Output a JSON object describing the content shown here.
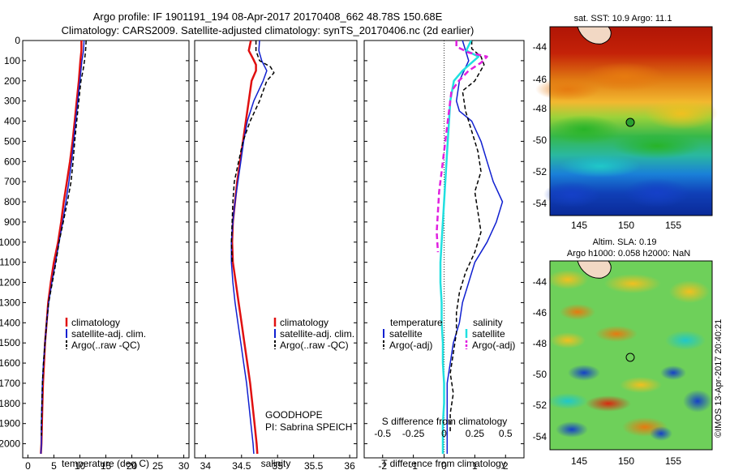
{
  "header": {
    "title_line1": "Argo profile: IF 1901191_194 08-Apr-2017 20170408_662 48.78S 150.68E",
    "title_line2": "Climatology: CARS2009. Satellite-adjusted climatology: synTS_20170406.nc (2d earlier)"
  },
  "colors": {
    "climatology": "#e01010",
    "satellite": "#1020d0",
    "argo": "#000000",
    "salinity_sat": "#20e0e0",
    "salinity_argo": "#e020e0"
  },
  "legend": {
    "climatology": "climatology",
    "satellite_adj": "satellite-adj. clim.",
    "argo": "Argo(..raw -QC)",
    "temperature_head": "temperature",
    "salinity_head": "salinity",
    "satellite": "satellite",
    "argo_adj": "Argo(-adj)"
  },
  "info": {
    "project": "GOODHOPE",
    "pi": "PI: Sabrina SPEICH"
  },
  "sst_map": {
    "title": "sat. SST: 10.9 Argo: 11.1"
  },
  "sla_map": {
    "title_line1": "Altim. SLA: 0.19",
    "title_line2": "Argo h1000: 0.058 h2000: NaN"
  },
  "stamp": "©IMOS 13-Apr-2017 20:40:21",
  "chart_data": [
    {
      "type": "line",
      "id": "temperature",
      "xlabel": "temperature (deg C)",
      "ylabel": "",
      "xlim": [
        -1,
        31
      ],
      "ylim": [
        2070,
        0
      ],
      "xticks": [
        "0",
        "5",
        "10",
        "15",
        "20",
        "25",
        "30"
      ],
      "xtick_values": [
        0,
        5,
        10,
        15,
        20,
        25,
        30
      ],
      "yticks": [
        0,
        100,
        200,
        300,
        400,
        500,
        600,
        700,
        800,
        900,
        1000,
        1100,
        1200,
        1300,
        1400,
        1500,
        1600,
        1700,
        1800,
        1900,
        2000
      ],
      "series": [
        {
          "name": "climatology",
          "color": "climatology",
          "width": 2.5,
          "dash": "",
          "points": [
            [
              10.3,
              0
            ],
            [
              10.3,
              50
            ],
            [
              10.1,
              100
            ],
            [
              9.8,
              200
            ],
            [
              9.4,
              300
            ],
            [
              9.0,
              400
            ],
            [
              8.6,
              500
            ],
            [
              8.1,
              600
            ],
            [
              7.5,
              700
            ],
            [
              6.9,
              800
            ],
            [
              6.4,
              900
            ],
            [
              5.8,
              1000
            ],
            [
              5.0,
              1100
            ],
            [
              4.4,
              1200
            ],
            [
              3.9,
              1300
            ],
            [
              3.6,
              1400
            ],
            [
              3.3,
              1500
            ],
            [
              3.1,
              1600
            ],
            [
              2.9,
              1700
            ],
            [
              2.8,
              1800
            ],
            [
              2.7,
              1900
            ],
            [
              2.6,
              2000
            ],
            [
              2.5,
              2050
            ]
          ]
        },
        {
          "name": "satellite-adj. clim.",
          "color": "satellite",
          "width": 1.5,
          "dash": "",
          "points": [
            [
              10.8,
              0
            ],
            [
              10.7,
              50
            ],
            [
              10.4,
              100
            ],
            [
              10.0,
              200
            ],
            [
              9.6,
              300
            ],
            [
              9.2,
              400
            ],
            [
              8.8,
              500
            ],
            [
              8.4,
              600
            ],
            [
              7.9,
              700
            ],
            [
              7.3,
              800
            ],
            [
              6.7,
              900
            ],
            [
              6.0,
              1000
            ],
            [
              5.3,
              1100
            ],
            [
              4.6,
              1200
            ],
            [
              4.0,
              1300
            ],
            [
              3.6,
              1400
            ],
            [
              3.3,
              1500
            ],
            [
              3.0,
              1600
            ],
            [
              2.8,
              1700
            ],
            [
              2.7,
              1800
            ],
            [
              2.6,
              1900
            ],
            [
              2.6,
              2000
            ],
            [
              2.5,
              2050
            ]
          ]
        },
        {
          "name": "Argo(..raw -QC)",
          "color": "argo",
          "width": 1.5,
          "dash": "5,3",
          "points": [
            [
              11.2,
              0
            ],
            [
              11.1,
              50
            ],
            [
              10.9,
              100
            ],
            [
              10.6,
              150
            ],
            [
              10.2,
              200
            ],
            [
              9.8,
              300
            ],
            [
              9.4,
              400
            ],
            [
              9.0,
              500
            ],
            [
              8.7,
              600
            ],
            [
              8.3,
              700
            ],
            [
              7.6,
              800
            ],
            [
              6.8,
              900
            ],
            [
              6.0,
              1000
            ],
            [
              5.4,
              1100
            ],
            [
              4.7,
              1200
            ],
            [
              4.0,
              1300
            ],
            [
              3.6,
              1400
            ],
            [
              3.3,
              1500
            ],
            [
              3.0,
              1600
            ],
            [
              2.8,
              1700
            ],
            [
              2.7,
              1800
            ],
            [
              2.6,
              1900
            ],
            [
              2.6,
              1960
            ]
          ]
        }
      ]
    },
    {
      "type": "line",
      "id": "salinity",
      "xlabel": "salinity",
      "ylabel": "",
      "xlim": [
        33.85,
        36.1
      ],
      "ylim": [
        2070,
        0
      ],
      "xticks": [
        "34",
        "34.5",
        "35",
        "35.5",
        "36"
      ],
      "xtick_values": [
        34,
        34.5,
        35,
        35.5,
        36
      ],
      "yticks": [
        0,
        100,
        200,
        300,
        400,
        500,
        600,
        700,
        800,
        900,
        1000,
        1100,
        1200,
        1300,
        1400,
        1500,
        1600,
        1700,
        1800,
        1900,
        2000
      ],
      "series": [
        {
          "name": "climatology",
          "color": "climatology",
          "width": 2.5,
          "dash": "",
          "points": [
            [
              34.63,
              0
            ],
            [
              34.6,
              50
            ],
            [
              34.66,
              90
            ],
            [
              34.7,
              120
            ],
            [
              34.7,
              150
            ],
            [
              34.64,
              200
            ],
            [
              34.6,
              300
            ],
            [
              34.56,
              400
            ],
            [
              34.52,
              500
            ],
            [
              34.48,
              600
            ],
            [
              34.44,
              700
            ],
            [
              34.41,
              800
            ],
            [
              34.38,
              900
            ],
            [
              34.37,
              1000
            ],
            [
              34.38,
              1100
            ],
            [
              34.42,
              1200
            ],
            [
              34.46,
              1300
            ],
            [
              34.5,
              1400
            ],
            [
              34.54,
              1500
            ],
            [
              34.58,
              1600
            ],
            [
              34.62,
              1700
            ],
            [
              34.65,
              1800
            ],
            [
              34.68,
              1900
            ],
            [
              34.71,
              2000
            ],
            [
              34.72,
              2050
            ]
          ]
        },
        {
          "name": "satellite-adj. clim.",
          "color": "satellite",
          "width": 1.5,
          "dash": "",
          "points": [
            [
              34.75,
              0
            ],
            [
              34.74,
              50
            ],
            [
              34.78,
              100
            ],
            [
              34.85,
              150
            ],
            [
              34.8,
              200
            ],
            [
              34.67,
              300
            ],
            [
              34.58,
              400
            ],
            [
              34.53,
              500
            ],
            [
              34.49,
              600
            ],
            [
              34.45,
              700
            ],
            [
              34.41,
              800
            ],
            [
              34.38,
              900
            ],
            [
              34.36,
              1000
            ],
            [
              34.36,
              1100
            ],
            [
              34.38,
              1200
            ],
            [
              34.41,
              1300
            ],
            [
              34.45,
              1400
            ],
            [
              34.49,
              1500
            ],
            [
              34.53,
              1600
            ],
            [
              34.57,
              1700
            ],
            [
              34.6,
              1800
            ],
            [
              34.63,
              1900
            ],
            [
              34.66,
              2000
            ],
            [
              34.67,
              2050
            ]
          ]
        },
        {
          "name": "Argo(..raw -QC)",
          "color": "argo",
          "width": 1.5,
          "dash": "5,3",
          "points": [
            [
              34.7,
              0
            ],
            [
              34.7,
              50
            ],
            [
              34.75,
              100
            ],
            [
              34.9,
              130
            ],
            [
              34.95,
              160
            ],
            [
              34.85,
              200
            ],
            [
              34.75,
              300
            ],
            [
              34.62,
              400
            ],
            [
              34.52,
              500
            ],
            [
              34.46,
              600
            ],
            [
              34.4,
              700
            ],
            [
              34.38,
              800
            ],
            [
              34.37,
              900
            ],
            [
              34.36,
              1000
            ],
            [
              34.37,
              1100
            ]
          ]
        }
      ]
    },
    {
      "type": "line",
      "id": "differences",
      "xlabel": "T difference from climatology",
      "xlabel_top": "S difference from climatology",
      "xlim": [
        -2.6,
        2.6
      ],
      "ylim": [
        2070,
        0
      ],
      "xticks": [
        "-2",
        "-1",
        "0",
        "1",
        "2"
      ],
      "xtick_values": [
        -2,
        -1,
        0,
        1,
        2
      ],
      "sticks": [
        "-0.5",
        "-0.25",
        "0",
        "0.25",
        "0.5"
      ],
      "stick_values": [
        -0.5,
        -0.25,
        0,
        0.25,
        0.5
      ],
      "yticks": [
        0,
        100,
        200,
        300,
        400,
        500,
        600,
        700,
        800,
        900,
        1000,
        1100,
        1200,
        1300,
        1400,
        1500,
        1600,
        1700,
        1800,
        1900,
        2000
      ],
      "series": [
        {
          "name": "satellite",
          "group": "temperature",
          "color": "satellite",
          "width": 1.5,
          "dash": "",
          "points": [
            [
              0.6,
              0
            ],
            [
              0.7,
              50
            ],
            [
              0.8,
              100
            ],
            [
              0.5,
              200
            ],
            [
              0.4,
              300
            ],
            [
              0.5,
              350
            ],
            [
              0.9,
              400
            ],
            [
              1.2,
              500
            ],
            [
              1.4,
              600
            ],
            [
              1.6,
              700
            ],
            [
              1.9,
              800
            ],
            [
              1.7,
              900
            ],
            [
              1.4,
              1000
            ],
            [
              1.0,
              1100
            ],
            [
              0.8,
              1200
            ],
            [
              0.6,
              1300
            ],
            [
              0.5,
              1400
            ],
            [
              0.3,
              1500
            ],
            [
              0.2,
              1600
            ],
            [
              0.1,
              1700
            ],
            [
              0.1,
              1800
            ],
            [
              0.1,
              1900
            ],
            [
              0.1,
              2050
            ]
          ]
        },
        {
          "name": "Argo(-adj)",
          "group": "temperature",
          "color": "argo",
          "width": 1.5,
          "dash": "5,3",
          "points": [
            [
              0.9,
              0
            ],
            [
              0.9,
              40
            ],
            [
              1.2,
              80
            ],
            [
              1.3,
              120
            ],
            [
              1.0,
              200
            ],
            [
              0.6,
              250
            ],
            [
              0.7,
              350
            ],
            [
              0.9,
              450
            ],
            [
              1.1,
              550
            ],
            [
              1.2,
              650
            ],
            [
              1.0,
              750
            ],
            [
              1.1,
              850
            ],
            [
              1.2,
              950
            ],
            [
              1.0,
              1050
            ],
            [
              0.7,
              1150
            ],
            [
              0.5,
              1250
            ],
            [
              0.4,
              1350
            ],
            [
              0.4,
              1450
            ],
            [
              0.3,
              1550
            ],
            [
              0.2,
              1650
            ],
            [
              0.3,
              1750
            ],
            [
              0.2,
              1850
            ],
            [
              0.2,
              1950
            ]
          ]
        },
        {
          "name": "satellite",
          "group": "salinity",
          "color": "salinity_sat",
          "width": 2.5,
          "dash": "",
          "points": [
            [
              0.22,
              0
            ],
            [
              0.18,
              50
            ],
            [
              0.28,
              80
            ],
            [
              0.15,
              150
            ],
            [
              0.08,
              200
            ],
            [
              0.05,
              300
            ],
            [
              0.04,
              400
            ],
            [
              0.03,
              500
            ],
            [
              0.02,
              600
            ],
            [
              0.01,
              700
            ],
            [
              0.0,
              800
            ],
            [
              -0.01,
              900
            ],
            [
              -0.02,
              1000
            ],
            [
              -0.03,
              1100
            ],
            [
              -0.03,
              1200
            ],
            [
              -0.02,
              1300
            ],
            [
              -0.02,
              1400
            ],
            [
              -0.01,
              1500
            ],
            [
              -0.01,
              1600
            ],
            [
              0.0,
              1700
            ],
            [
              0.0,
              1800
            ],
            [
              -0.01,
              1900
            ],
            [
              -0.01,
              2050
            ]
          ]
        },
        {
          "name": "Argo(-adj)",
          "group": "salinity",
          "color": "salinity_argo",
          "width": 2.5,
          "dash": "7,4",
          "points": [
            [
              0.1,
              0
            ],
            [
              0.1,
              30
            ],
            [
              0.2,
              60
            ],
            [
              0.35,
              80
            ],
            [
              0.3,
              110
            ],
            [
              0.2,
              150
            ],
            [
              0.12,
              200
            ],
            [
              0.06,
              250
            ],
            [
              0.04,
              350
            ],
            [
              0.02,
              450
            ],
            [
              0.0,
              550
            ],
            [
              -0.02,
              650
            ],
            [
              -0.04,
              750
            ],
            [
              -0.05,
              850
            ],
            [
              -0.06,
              950
            ],
            [
              -0.05,
              1050
            ]
          ]
        }
      ]
    }
  ]
}
